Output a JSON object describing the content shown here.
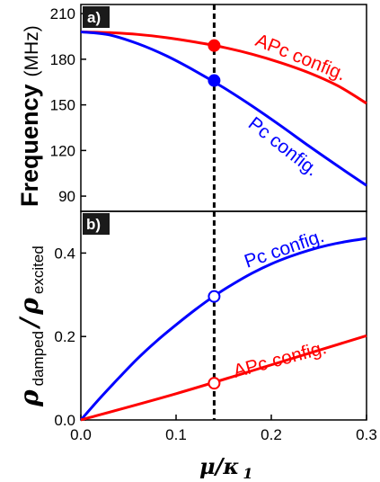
{
  "chart_data": [
    {
      "panel_label": "a)",
      "type": "line",
      "ylabel": "Frequency",
      "ylabel_unit": "(MHz)",
      "xlim": [
        0.0,
        0.3
      ],
      "ylim": [
        80,
        216
      ],
      "yticks": [
        90,
        120,
        150,
        180,
        210
      ],
      "series": [
        {
          "name": "APc config.",
          "color": "#ff0000",
          "x": [
            0.0,
            0.03,
            0.06,
            0.09,
            0.12,
            0.15,
            0.18,
            0.21,
            0.24,
            0.27,
            0.3
          ],
          "y": [
            198,
            197.5,
            196.3,
            194.2,
            191.3,
            187.8,
            183.3,
            177.7,
            171.0,
            162.5,
            151
          ]
        },
        {
          "name": "Pc config.",
          "color": "#0000ff",
          "x": [
            0.0,
            0.03,
            0.06,
            0.09,
            0.12,
            0.15,
            0.18,
            0.21,
            0.24,
            0.27,
            0.3
          ],
          "y": [
            198,
            196,
            190.2,
            182.2,
            172.3,
            161.3,
            149.2,
            136.2,
            122.7,
            109.7,
            97
          ]
        }
      ],
      "markers": [
        {
          "x": 0.14,
          "y": 189,
          "color": "#ff0000",
          "filled": true
        },
        {
          "x": 0.14,
          "y": 166,
          "color": "#0000ff",
          "filled": true
        }
      ],
      "vline_x": 0.14
    },
    {
      "panel_label": "b)",
      "type": "line",
      "ylabel_main": "ρ",
      "ylabel_sub1": "damped",
      "ylabel_slash": "/",
      "ylabel_sub2": "excited",
      "xlabel_main": "μ/κ",
      "xlabel_sub": "1",
      "xlim": [
        0.0,
        0.3
      ],
      "ylim": [
        0.0,
        0.5
      ],
      "xticks": [
        "0.0",
        "0.1",
        "0.2",
        "0.3"
      ],
      "yticks": [
        "0.0",
        "0.2",
        "0.4"
      ],
      "series": [
        {
          "name": "Pc config.",
          "color": "#0000ff",
          "x": [
            0.0,
            0.02,
            0.04,
            0.06,
            0.08,
            0.1,
            0.12,
            0.14,
            0.16,
            0.18,
            0.2,
            0.22,
            0.24,
            0.26,
            0.28,
            0.3
          ],
          "y": [
            0.0,
            0.052,
            0.101,
            0.148,
            0.19,
            0.228,
            0.264,
            0.297,
            0.326,
            0.352,
            0.374,
            0.392,
            0.407,
            0.419,
            0.428,
            0.435
          ]
        },
        {
          "name": "APc config.",
          "color": "#ff0000",
          "x": [
            0.0,
            0.1,
            0.2,
            0.3
          ],
          "y": [
            0.0,
            0.063,
            0.132,
            0.202
          ]
        }
      ],
      "markers": [
        {
          "x": 0.14,
          "y": 0.296,
          "color": "#0000ff",
          "filled": false
        },
        {
          "x": 0.14,
          "y": 0.088,
          "color": "#ff0000",
          "filled": false
        }
      ],
      "vline_x": 0.14
    }
  ]
}
